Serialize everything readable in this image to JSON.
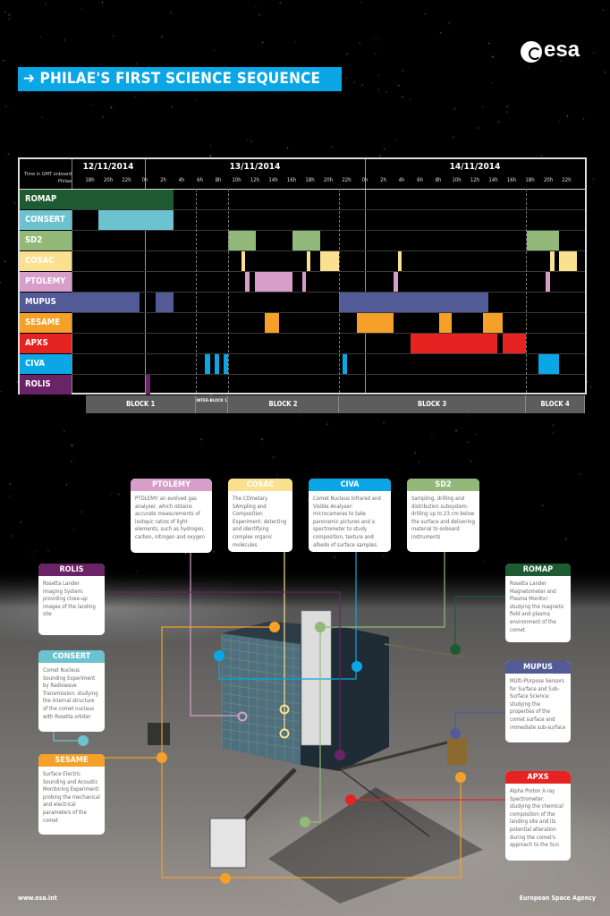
{
  "header": {
    "title": "PHILAE'S FIRST SCIENCE SEQUENCE",
    "arrow_icon": "arrow-right-icon",
    "logo_text": "esa"
  },
  "timeline": {
    "time_caption": "Time in GMT onboard Philae",
    "dates": [
      "12/11/2014",
      "13/11/2014",
      "14/11/2014"
    ],
    "range": [
      "12/11 16:00",
      "15/11 00:00"
    ],
    "tick_labels": [
      "18h",
      "20h",
      "22h",
      "0h",
      "2h",
      "4h",
      "6h",
      "8h",
      "10h",
      "12h",
      "14h",
      "16h",
      "18h",
      "20h",
      "22h",
      "0h",
      "2h",
      "4h",
      "6h",
      "8h",
      "10h",
      "12h",
      "14h",
      "16h",
      "18h",
      "20h",
      "22h"
    ],
    "blocks": [
      {
        "label": "BLOCK 1",
        "start": "12/11 17:35",
        "end": "13/11 05:35"
      },
      {
        "label": "INTER-BLOCK 1",
        "start": "13/11 05:35",
        "end": "13/11 09:05"
      },
      {
        "label": "BLOCK 2",
        "start": "13/11 09:05",
        "end": "13/11 21:10"
      },
      {
        "label": "BLOCK 3",
        "start": "13/11 21:10",
        "end": "14/11 17:35"
      },
      {
        "label": "BLOCK 4",
        "start": "14/11 17:35",
        "end": "15/11 00:00"
      }
    ]
  },
  "instruments": [
    {
      "name": "ROMAP",
      "color": "#1e5a32",
      "bars": [
        [
          "12/11 16:00",
          "13/11 03:05"
        ]
      ],
      "description": "Rosetta Lander Magnetometer and Plasma Monitor: studying the magnetic field and plasma environment of the comet"
    },
    {
      "name": "CONSERT",
      "color": "#6cc3cf",
      "bars": [
        [
          "12/11 18:55",
          "13/11 03:05"
        ]
      ],
      "description": "Comet Nucleus Sounding Experiment by Radiowave Transmission: studying the internal structure of the comet nucleus with Rosetta orbiter"
    },
    {
      "name": "SD2",
      "color": "#93b97a",
      "bars": [
        [
          "13/11 09:05",
          "13/11 12:05"
        ],
        [
          "13/11 16:05",
          "13/11 19:05"
        ],
        [
          "14/11 17:40",
          "14/11 21:10"
        ]
      ],
      "description": "Sampling, drilling and distribution subsystem: drilling up to 23 cm below the surface and delivering material to onboard instruments"
    },
    {
      "name": "COSAC",
      "color": "#fbe08f",
      "bars": [
        [
          "13/11 10:30",
          "13/11 10:55"
        ],
        [
          "13/11 17:40",
          "13/11 18:05"
        ],
        [
          "13/11 19:05",
          "13/11 21:10"
        ],
        [
          "14/11 03:35",
          "14/11 04:00"
        ],
        [
          "14/11 20:10",
          "14/11 20:40"
        ],
        [
          "14/11 21:10",
          "14/11 23:10"
        ]
      ],
      "description": "The COmetary SAmpling and Composition Experiment: detecting and identifying complex organic molecules"
    },
    {
      "name": "PTOLEMY",
      "color": "#d79ec9",
      "bars": [
        [
          "13/11 10:55",
          "13/11 11:25"
        ],
        [
          "13/11 12:00",
          "13/11 16:05"
        ],
        [
          "13/11 17:10",
          "13/11 17:35"
        ],
        [
          "14/11 03:05",
          "14/11 03:35"
        ],
        [
          "14/11 19:40",
          "14/11 20:10"
        ]
      ],
      "description": "PTOLEMY: an evolved gas analyser, which obtains accurate measurements of isotopic ratios of light elements, such as hydrogen, carbon, nitrogen and oxygen"
    },
    {
      "name": "MUPUS",
      "color": "#535a98",
      "bars": [
        [
          "12/11 16:00",
          "12/11 23:25"
        ],
        [
          "13/11 01:10",
          "13/11 03:05"
        ],
        [
          "13/11 21:10",
          "14/11 13:30"
        ]
      ],
      "description": "MUlti-PUrpose Sensors for Surface and Sub-Surface Science: studying the properties of the comet surface and immediate sub-surface"
    },
    {
      "name": "SESAME",
      "color": "#f5a028",
      "bars": [
        [
          "13/11 13:05",
          "13/11 14:40"
        ],
        [
          "13/11 23:10",
          "14/11 03:05"
        ],
        [
          "14/11 08:05",
          "14/11 09:25"
        ],
        [
          "14/11 12:50",
          "14/11 15:00"
        ]
      ],
      "description": "Surface Electric Sounding and Acoustic Monitoring Experiment: probing the mechanical and electrical parameters of the comet"
    },
    {
      "name": "APXS",
      "color": "#e52421",
      "bars": [
        [
          "14/11 05:00",
          "14/11 14:25"
        ],
        [
          "14/11 15:00",
          "14/11 17:35"
        ]
      ],
      "description": "Alpha Proton X-ray Spectrometer: studying the chemical composition of the landing site and its potential alteration during the comet's approach to the Sun"
    },
    {
      "name": "CIVA",
      "color": "#0aa6e6",
      "bars": [
        [
          "13/11 06:35",
          "13/11 07:05"
        ],
        [
          "13/11 07:35",
          "13/11 08:05"
        ],
        [
          "13/11 08:35",
          "13/11 09:05"
        ],
        [
          "13/11 21:35",
          "13/11 22:05"
        ],
        [
          "14/11 18:55",
          "14/11 21:10"
        ]
      ],
      "description": "Comet Nucleus Infrared and Visible Analyser: microcameras to take panoramic pictures and a spectrometer to study composition, texture and albedo of surface samples."
    },
    {
      "name": "ROLIS",
      "color": "#6a2366",
      "bars": [
        [
          "13/11 00:05",
          "13/11 00:35"
        ]
      ],
      "description": "Rosetta Lander Imaging System: providing close-up images of the landing site"
    }
  ],
  "footer": {
    "left": "www.esa.int",
    "right": "European Space Agency"
  }
}
